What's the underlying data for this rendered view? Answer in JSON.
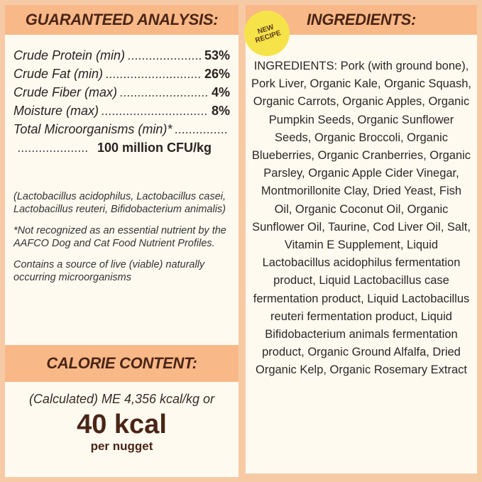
{
  "guaranteed_analysis": {
    "title": "GUARANTEED ANALYSIS:",
    "rows": [
      {
        "label": "Crude Protein (min)",
        "value": "53%"
      },
      {
        "label": "Crude Fat (min)",
        "value": "26%"
      },
      {
        "label": "Crude Fiber (max)",
        "value": "4%"
      },
      {
        "label": "Moisture (max)",
        "value": "8%"
      },
      {
        "label": "Total Microorganisms (min)*",
        "value": ""
      },
      {
        "label": "",
        "value": "100 million CFU/kg"
      }
    ],
    "notes": [
      "(Lactobacillus acidophilus, Lactobacillus casei, Lactobacillus reuteri, Bifidobacterium animalis)",
      "*Not recognized as an essential nutrient by the AAFCO Dog and Cat Food Nutrient Profiles.",
      "Contains a source of live (viable) naturally occurring microorganisms"
    ]
  },
  "calorie": {
    "title": "CALORIE CONTENT:",
    "me": "(Calculated) ME 4,356 kcal/kg or",
    "big": "40 kcal",
    "per": "per nugget"
  },
  "ingredients": {
    "title": "INGREDIENTS:",
    "badge": "NEW RECIPE",
    "text": "INGREDIENTS: Pork (with ground bone), Pork Liver, Organic Kale, Organic Squash, Organic Carrots, Organic Apples, Organic Pumpkin Seeds, Organic Sunflower Seeds, Organic Broccoli, Organic Blueberries, Organic Cranberries, Organic Parsley, Organic Apple Cider Vinegar, Montmorillonite Clay, Dried Yeast, Fish Oil, Organic Coconut Oil, Organic Sunflower Oil, Taurine, Cod Liver Oil, Salt, Vitamin E Supplement, Liquid Lactobacillus acidophilus fermentation product, Liquid Lactobacillus case fermentation product, Liquid Lactobacillus reuteri fermentation product, Liquid Bifidobacterium animals fermentation product, Organic Ground Alfalfa, Dried Organic Kelp, Organic Rosemary Extract"
  },
  "colors": {
    "background": "#f7caa6",
    "header": "#f9b887",
    "panel": "#fefaf0",
    "title_text": "#4a2516",
    "badge": "#f6e34a"
  }
}
